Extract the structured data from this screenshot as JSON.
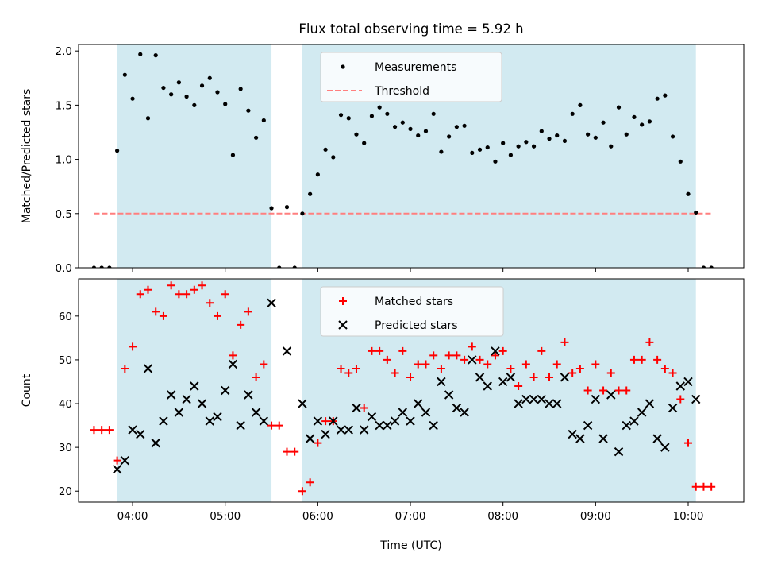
{
  "figure": {
    "title": "Flux total observing time = 5.92 h",
    "xlabel": "Time (UTC)",
    "xticks": [
      "04:00",
      "05:00",
      "06:00",
      "07:00",
      "08:00",
      "09:00",
      "10:00"
    ],
    "xlim": [
      "03:25",
      "10:36"
    ]
  },
  "colors": {
    "shade": "#add8e6",
    "measurement": "#000000",
    "threshold": "#ff7f7f",
    "matched": "#ff0000",
    "predicted": "#000000"
  },
  "chart_data": [
    {
      "type": "scatter",
      "ylabel": "Matched/Predicted stars",
      "ylim": [
        0,
        2.06
      ],
      "yticks": [
        0.0,
        0.5,
        1.0,
        1.5,
        2.0
      ],
      "shaded_spans": [
        [
          "03:50",
          "05:30"
        ],
        [
          "05:50",
          "10:05"
        ]
      ],
      "threshold": {
        "name": "Threshold",
        "value": 0.5,
        "x_range": [
          "03:35",
          "10:15"
        ]
      },
      "legend": {
        "position": "top-center",
        "entries": [
          "Measurements",
          "Threshold"
        ]
      },
      "series": [
        {
          "name": "Measurements",
          "x": [
            "03:35",
            "03:40",
            "03:45",
            "03:50",
            "03:55",
            "04:00",
            "04:05",
            "04:10",
            "04:15",
            "04:20",
            "04:25",
            "04:30",
            "04:35",
            "04:40",
            "04:45",
            "04:50",
            "04:55",
            "05:00",
            "05:05",
            "05:10",
            "05:15",
            "05:20",
            "05:25",
            "05:30",
            "05:35",
            "05:40",
            "05:45",
            "05:50",
            "05:55",
            "06:00",
            "06:05",
            "06:10",
            "06:15",
            "06:20",
            "06:25",
            "06:30",
            "06:35",
            "06:40",
            "06:45",
            "06:50",
            "06:55",
            "07:00",
            "07:05",
            "07:10",
            "07:15",
            "07:20",
            "07:25",
            "07:30",
            "07:35",
            "07:40",
            "07:45",
            "07:50",
            "07:55",
            "08:00",
            "08:05",
            "08:10",
            "08:15",
            "08:20",
            "08:25",
            "08:30",
            "08:35",
            "08:40",
            "08:45",
            "08:50",
            "08:55",
            "09:00",
            "09:05",
            "09:10",
            "09:15",
            "09:20",
            "09:25",
            "09:30",
            "09:35",
            "09:40",
            "09:45",
            "09:50",
            "09:55",
            "10:00",
            "10:05",
            "10:10",
            "10:15"
          ],
          "y": [
            0.0,
            0.0,
            0.0,
            1.08,
            1.78,
            1.56,
            1.97,
            1.38,
            1.96,
            1.66,
            1.6,
            1.71,
            1.58,
            1.5,
            1.68,
            1.75,
            1.62,
            1.51,
            1.04,
            1.65,
            1.45,
            1.2,
            1.36,
            0.55,
            0.0,
            0.56,
            0.0,
            0.5,
            0.68,
            0.86,
            1.09,
            1.02,
            1.41,
            1.38,
            1.23,
            1.15,
            1.4,
            1.48,
            1.42,
            1.3,
            1.34,
            1.28,
            1.22,
            1.26,
            1.42,
            1.07,
            1.21,
            1.3,
            1.31,
            1.06,
            1.09,
            1.11,
            0.98,
            1.15,
            1.04,
            1.12,
            1.16,
            1.12,
            1.26,
            1.19,
            1.22,
            1.17,
            1.42,
            1.5,
            1.23,
            1.2,
            1.34,
            1.12,
            1.48,
            1.23,
            1.39,
            1.32,
            1.35,
            1.56,
            1.59,
            1.21,
            0.98,
            0.68,
            0.51,
            0.0,
            0.0
          ]
        }
      ]
    },
    {
      "type": "scatter",
      "ylabel": "Count",
      "ylim": [
        17.5,
        68.5
      ],
      "yticks": [
        20,
        30,
        40,
        50,
        60
      ],
      "shaded_spans": [
        [
          "03:50",
          "05:30"
        ],
        [
          "05:50",
          "10:05"
        ]
      ],
      "legend": {
        "position": "top-center",
        "entries": [
          "Matched stars",
          "Predicted stars"
        ]
      },
      "series": [
        {
          "name": "Matched stars",
          "x": [
            "03:35",
            "03:40",
            "03:45",
            "03:50",
            "03:55",
            "04:00",
            "04:05",
            "04:10",
            "04:15",
            "04:20",
            "04:25",
            "04:30",
            "04:35",
            "04:40",
            "04:45",
            "04:50",
            "04:55",
            "05:00",
            "05:05",
            "05:10",
            "05:15",
            "05:20",
            "05:25",
            "05:30",
            "05:35",
            "05:40",
            "05:45",
            "05:50",
            "05:55",
            "06:00",
            "06:05",
            "06:10",
            "06:15",
            "06:20",
            "06:25",
            "06:30",
            "06:35",
            "06:40",
            "06:45",
            "06:50",
            "06:55",
            "07:00",
            "07:05",
            "07:10",
            "07:15",
            "07:20",
            "07:25",
            "07:30",
            "07:35",
            "07:40",
            "07:45",
            "07:50",
            "07:55",
            "08:00",
            "08:05",
            "08:10",
            "08:15",
            "08:20",
            "08:25",
            "08:30",
            "08:35",
            "08:40",
            "08:45",
            "08:50",
            "08:55",
            "09:00",
            "09:05",
            "09:10",
            "09:15",
            "09:20",
            "09:25",
            "09:30",
            "09:35",
            "09:40",
            "09:45",
            "09:50",
            "09:55",
            "10:00",
            "10:05",
            "10:10",
            "10:15"
          ],
          "y": [
            34,
            34,
            34,
            27,
            48,
            53,
            65,
            66,
            61,
            60,
            67,
            65,
            65,
            66,
            67,
            63,
            60,
            65,
            51,
            58,
            61,
            46,
            49,
            35,
            35,
            29,
            29,
            20,
            22,
            31,
            36,
            36,
            48,
            47,
            48,
            39,
            52,
            52,
            50,
            47,
            52,
            46,
            49,
            49,
            51,
            48,
            51,
            51,
            50,
            53,
            50,
            49,
            51,
            52,
            48,
            44,
            49,
            46,
            52,
            46,
            49,
            54,
            47,
            48,
            43,
            49,
            43,
            47,
            43,
            43,
            50,
            50,
            54,
            50,
            48,
            47,
            41,
            31,
            21,
            21,
            21
          ]
        },
        {
          "name": "Predicted stars",
          "x": [
            "03:50",
            "03:55",
            "04:00",
            "04:05",
            "04:10",
            "04:15",
            "04:20",
            "04:25",
            "04:30",
            "04:35",
            "04:40",
            "04:45",
            "04:50",
            "04:55",
            "05:00",
            "05:05",
            "05:10",
            "05:15",
            "05:20",
            "05:25",
            "05:30",
            "05:40",
            "05:50",
            "05:55",
            "06:00",
            "06:05",
            "06:10",
            "06:15",
            "06:20",
            "06:25",
            "06:30",
            "06:35",
            "06:40",
            "06:45",
            "06:50",
            "06:55",
            "07:00",
            "07:05",
            "07:10",
            "07:15",
            "07:20",
            "07:25",
            "07:30",
            "07:35",
            "07:40",
            "07:45",
            "07:50",
            "07:55",
            "08:00",
            "08:05",
            "08:10",
            "08:15",
            "08:20",
            "08:25",
            "08:30",
            "08:35",
            "08:40",
            "08:45",
            "08:50",
            "08:55",
            "09:00",
            "09:05",
            "09:10",
            "09:15",
            "09:20",
            "09:25",
            "09:30",
            "09:35",
            "09:40",
            "09:45",
            "09:50",
            "09:55",
            "10:00",
            "10:05"
          ],
          "y": [
            25,
            27,
            34,
            33,
            48,
            31,
            36,
            42,
            38,
            41,
            44,
            40,
            36,
            37,
            43,
            49,
            35,
            42,
            38,
            36,
            63,
            52,
            40,
            32,
            36,
            33,
            36,
            34,
            34,
            39,
            34,
            37,
            35,
            35,
            36,
            38,
            36,
            40,
            38,
            35,
            45,
            42,
            39,
            38,
            50,
            46,
            44,
            52,
            45,
            46,
            40,
            41,
            41,
            41,
            40,
            40,
            46,
            33,
            32,
            35,
            41,
            32,
            42,
            29,
            35,
            36,
            38,
            40,
            32,
            30,
            39,
            44,
            45,
            41
          ]
        }
      ]
    }
  ]
}
